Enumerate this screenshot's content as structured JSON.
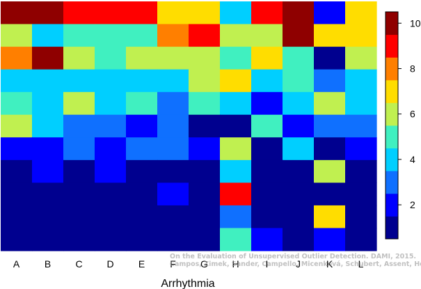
{
  "chart_data": {
    "type": "heatmap",
    "xlabel": "Arrhythmia",
    "categories": [
      "A",
      "B",
      "C",
      "D",
      "E",
      "F",
      "G",
      "H",
      "I",
      "J",
      "K",
      "L"
    ],
    "colorbar": {
      "min": 0.5,
      "max": 10.5,
      "ticks": [
        2,
        4,
        6,
        8,
        10
      ]
    },
    "colorscale": [
      "#00008f",
      "#0000ff",
      "#0f70ff",
      "#00cfff",
      "#40f0c0",
      "#c0f050",
      "#ffdd00",
      "#ff7f00",
      "#ff0000",
      "#8f0000"
    ],
    "matrix": [
      [
        10,
        10,
        9,
        9,
        9,
        7,
        7,
        4,
        9,
        10,
        2,
        7
      ],
      [
        6,
        4,
        5,
        5,
        5,
        8,
        9,
        6,
        6,
        10,
        7,
        7
      ],
      [
        8,
        10,
        6,
        5,
        6,
        6,
        6,
        5,
        7,
        5,
        1,
        6
      ],
      [
        4,
        4,
        4,
        4,
        4,
        4,
        6,
        7,
        4,
        5,
        3,
        4
      ],
      [
        5,
        4,
        6,
        4,
        5,
        3,
        5,
        4,
        2,
        4,
        6,
        4
      ],
      [
        6,
        4,
        3,
        3,
        2,
        3,
        1,
        1,
        5,
        2,
        3,
        3
      ],
      [
        2,
        2,
        3,
        2,
        3,
        3,
        2,
        6,
        1,
        4,
        1,
        2
      ],
      [
        1,
        2,
        1,
        2,
        1,
        1,
        1,
        4,
        1,
        1,
        6,
        1
      ],
      [
        1,
        1,
        1,
        1,
        1,
        2,
        1,
        9,
        1,
        1,
        1,
        1
      ],
      [
        1,
        1,
        1,
        1,
        1,
        1,
        1,
        3,
        1,
        1,
        7,
        1
      ],
      [
        1,
        1,
        1,
        1,
        1,
        1,
        1,
        5,
        2,
        1,
        2,
        1
      ]
    ]
  },
  "watermark": {
    "line1": "On the Evaluation of Unsupervised Outlier Detection. DAMI, 2015.",
    "line2": "Campos, Zimek, Sander, Campello, Micenková, Schubert, Assent, Houle"
  }
}
